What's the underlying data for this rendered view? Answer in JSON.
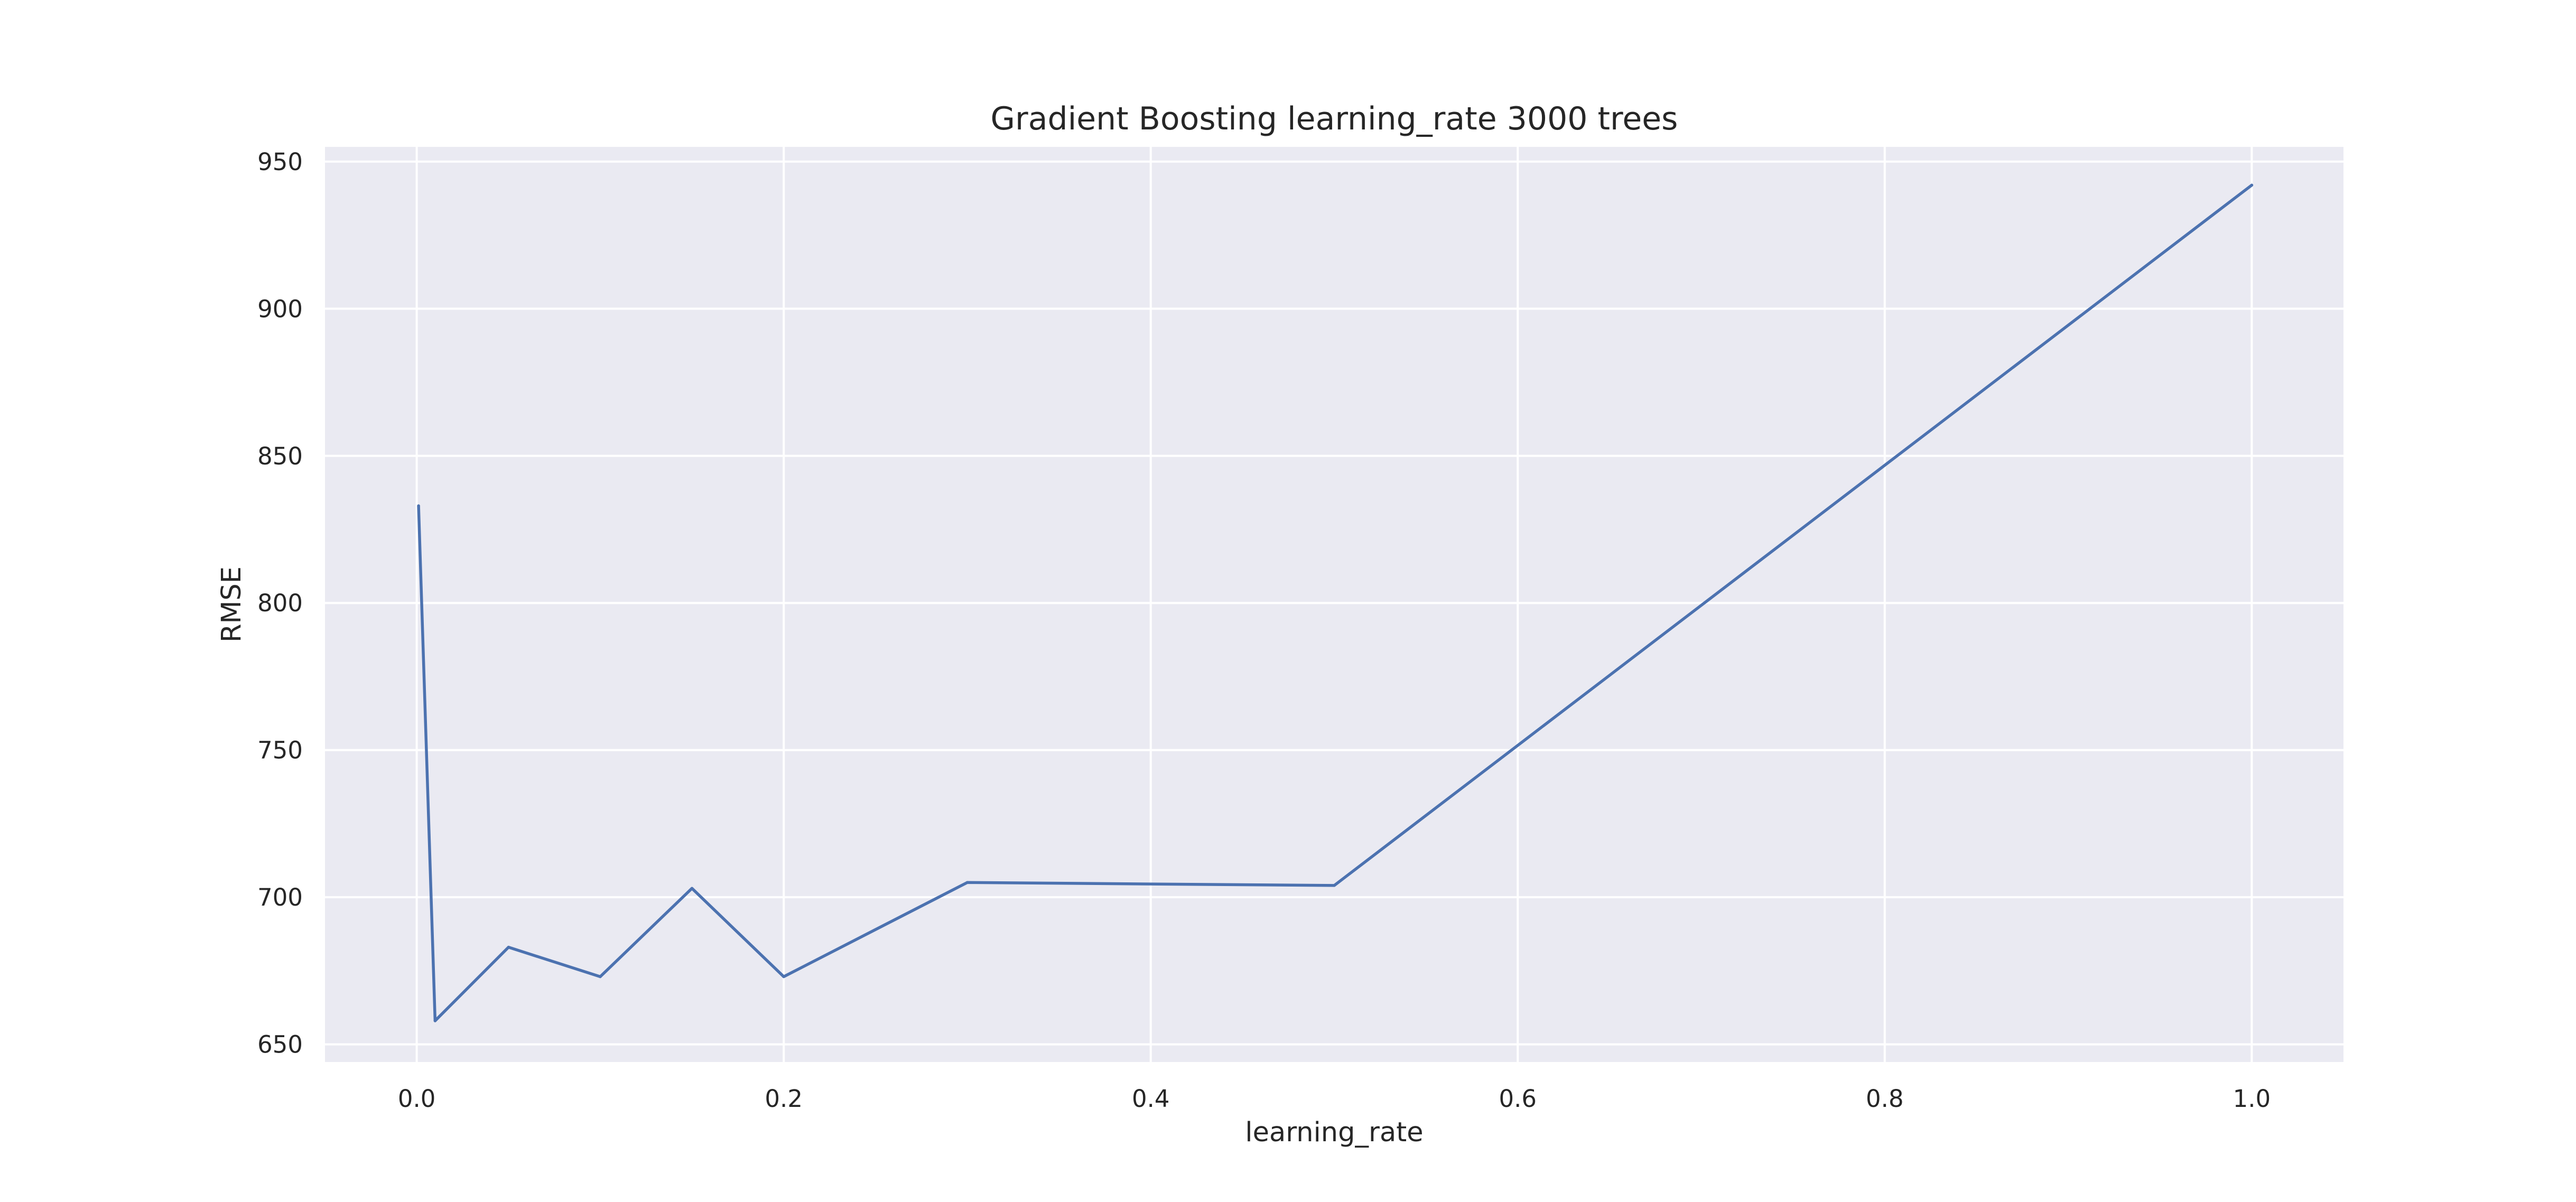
{
  "chart_data": {
    "type": "line",
    "title": "Gradient Boosting learning_rate 3000 trees",
    "xlabel": "learning_rate",
    "ylabel": "RMSE",
    "xlim": [
      -0.05,
      1.05
    ],
    "ylim": [
      644,
      955
    ],
    "grid": true,
    "x_ticks": [
      0.0,
      0.2,
      0.4,
      0.6,
      0.8,
      1.0
    ],
    "x_tick_labels": [
      "0.0",
      "0.2",
      "0.4",
      "0.6",
      "0.8",
      "1.0"
    ],
    "y_ticks": [
      650,
      700,
      750,
      800,
      850,
      900,
      950
    ],
    "y_tick_labels": [
      "650",
      "700",
      "750",
      "800",
      "850",
      "900",
      "950"
    ],
    "series": [
      {
        "color": "#4c72b0",
        "x": [
          0.001,
          0.01,
          0.05,
          0.1,
          0.15,
          0.2,
          0.3,
          0.5,
          1.0
        ],
        "y": [
          833,
          658,
          683,
          673,
          703,
          673,
          705,
          704,
          942
        ]
      }
    ],
    "colors": {
      "plot_background": "#eaeaf2",
      "grid": "#ffffff",
      "text": "#262626"
    }
  }
}
